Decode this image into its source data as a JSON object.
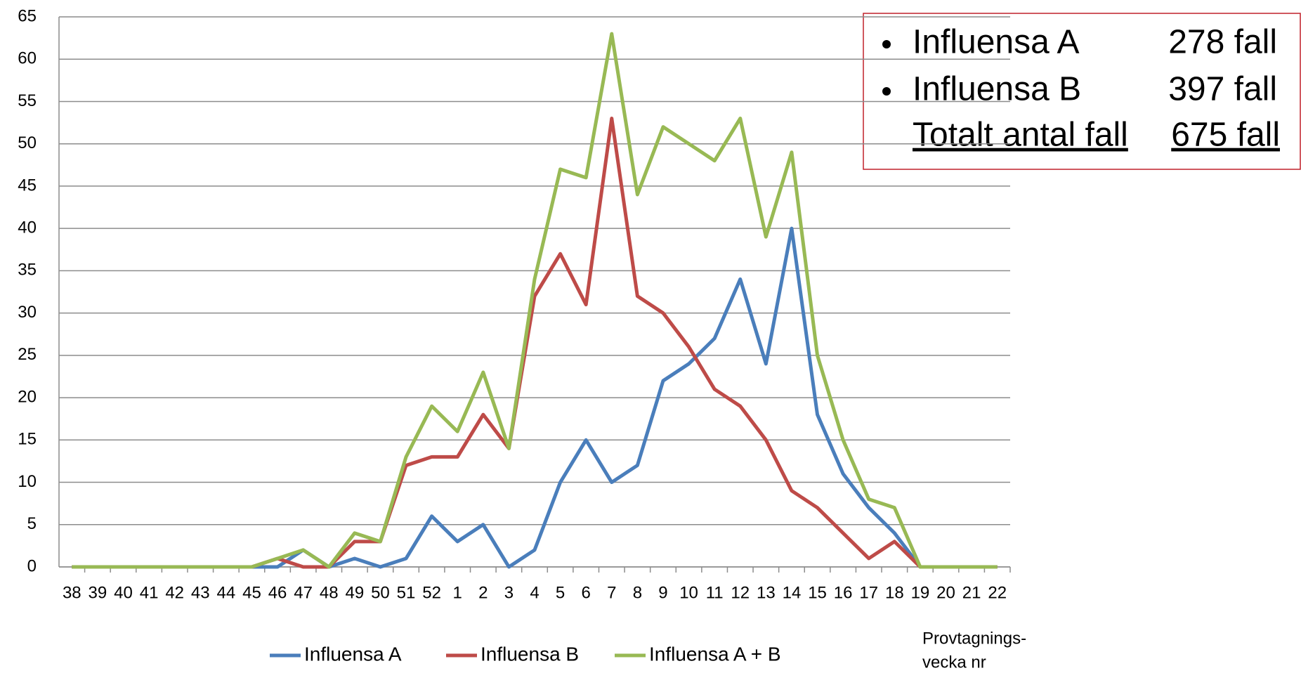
{
  "chart_data": {
    "type": "line",
    "categories": [
      "38",
      "39",
      "40",
      "41",
      "42",
      "43",
      "44",
      "45",
      "46",
      "47",
      "48",
      "49",
      "50",
      "51",
      "52",
      "1",
      "2",
      "3",
      "4",
      "5",
      "6",
      "7",
      "8",
      "9",
      "10",
      "11",
      "12",
      "13",
      "14",
      "15",
      "16",
      "17",
      "18",
      "19",
      "20",
      "21",
      "22"
    ],
    "series": [
      {
        "name": "Influensa A",
        "color": "#4a7ebb",
        "values": [
          0,
          0,
          0,
          0,
          0,
          0,
          0,
          0,
          0,
          2,
          0,
          1,
          0,
          1,
          6,
          3,
          5,
          0,
          2,
          10,
          15,
          10,
          12,
          22,
          24,
          27,
          34,
          24,
          40,
          18,
          11,
          7,
          4,
          0,
          0,
          0,
          0
        ]
      },
      {
        "name": "Influensa B",
        "color": "#be4b48",
        "values": [
          0,
          0,
          0,
          0,
          0,
          0,
          0,
          0,
          1,
          0,
          0,
          3,
          3,
          12,
          13,
          13,
          18,
          14,
          32,
          37,
          31,
          53,
          32,
          30,
          26,
          21,
          19,
          15,
          9,
          7,
          4,
          1,
          3,
          0,
          0,
          0,
          0
        ]
      },
      {
        "name": "Influensa A + B",
        "color": "#98b954",
        "values": [
          0,
          0,
          0,
          0,
          0,
          0,
          0,
          0,
          1,
          2,
          0,
          4,
          3,
          13,
          19,
          16,
          23,
          14,
          34,
          47,
          46,
          63,
          44,
          52,
          50,
          48,
          53,
          39,
          49,
          25,
          15,
          8,
          7,
          0,
          0,
          0,
          0
        ]
      }
    ],
    "ylim": [
      0,
      65
    ],
    "yticks": [
      0,
      5,
      10,
      15,
      20,
      25,
      30,
      35,
      40,
      45,
      50,
      55,
      60,
      65
    ],
    "grid": true,
    "xlabel": [
      "Provtagnings-",
      "vecka nr"
    ],
    "annotation": {
      "items": [
        {
          "label": "Influensa A",
          "value": "278 fall"
        },
        {
          "label": "Influensa B",
          "value": "397 fall"
        }
      ],
      "total": {
        "label": "Totalt antal fall",
        "value": "675 fall"
      }
    }
  }
}
